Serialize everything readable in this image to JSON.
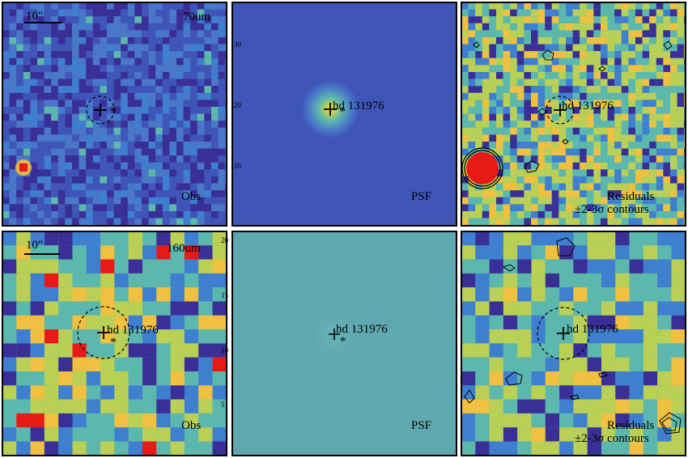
{
  "figure": {
    "target_name": "hd 131976",
    "colors": {
      "low": "#3a2f96",
      "mid_low": "#3f7fcf",
      "mid": "#5cb8ad",
      "mid_high": "#b9cf55",
      "high": "#f0c040",
      "peak": "#e81a18",
      "psf_field_70": "#3f55b8",
      "psf_field_160": "#5fa8b0",
      "frame": "#000000"
    },
    "rows": [
      {
        "band_label": "70um",
        "scale_bar_label": "10\"",
        "panels": [
          {
            "id": "obs",
            "label": "Obs"
          },
          {
            "id": "psf",
            "label": "PSF"
          },
          {
            "id": "residuals",
            "label_line1": "Residuals",
            "label_line2": "±2-3σ contours"
          }
        ],
        "psf_axis_ticks": [
          "30",
          "20",
          "10"
        ]
      },
      {
        "band_label": "160um",
        "scale_bar_label": "10\"",
        "panels": [
          {
            "id": "obs",
            "label": "Obs"
          },
          {
            "id": "psf",
            "label": "PSF"
          },
          {
            "id": "residuals",
            "label_line1": "Residuals",
            "label_line2": "±2-3σ contours"
          }
        ],
        "psf_axis_ticks": [
          "20",
          "15",
          "10",
          "5"
        ]
      }
    ]
  }
}
